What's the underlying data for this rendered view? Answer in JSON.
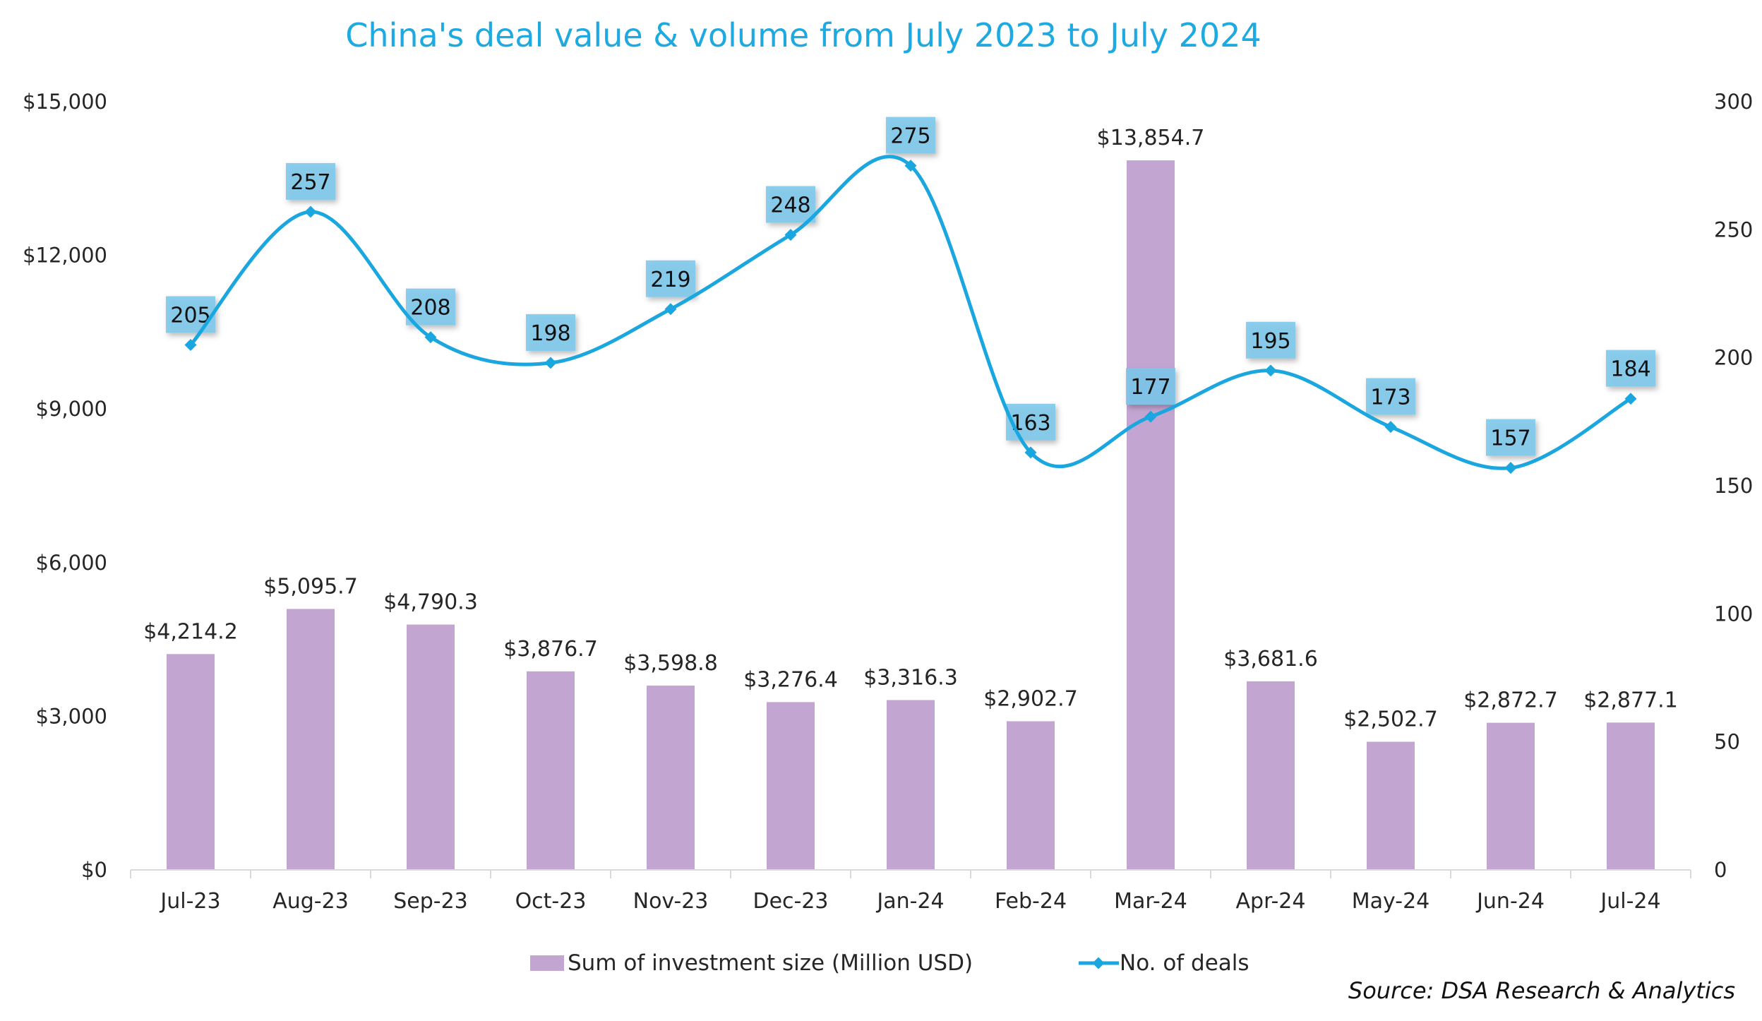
{
  "chart_data": {
    "type": "bar+line",
    "title": "China's deal value & volume from July 2023 to July 2024",
    "categories": [
      "Jul-23",
      "Aug-23",
      "Sep-23",
      "Oct-23",
      "Nov-23",
      "Dec-23",
      "Jan-24",
      "Feb-24",
      "Mar-24",
      "Apr-24",
      "May-24",
      "Jun-24",
      "Jul-24"
    ],
    "series": [
      {
        "name": "Sum of investment size (Million USD)",
        "type": "bar",
        "axis": "left",
        "color": "#c3a5d2",
        "values": [
          4214.2,
          5095.7,
          4790.3,
          3876.7,
          3598.8,
          3276.4,
          3316.3,
          2902.7,
          13854.7,
          3681.6,
          2502.7,
          2872.7,
          2877.1
        ],
        "labels": [
          "$4,214.2",
          "$5,095.7",
          "$4,790.3",
          "$3,876.7",
          "$3,598.8",
          "$3,276.4",
          "$3,316.3",
          "$2,902.7",
          "$13,854.7",
          "$3,681.6",
          "$2,502.7",
          "$2,872.7",
          "$2,877.1"
        ]
      },
      {
        "name": "No. of deals",
        "type": "line",
        "axis": "right",
        "smooth": true,
        "color": "#1aa6df",
        "label_box_color": "#7cc7ea",
        "values": [
          205,
          257,
          208,
          198,
          219,
          248,
          275,
          163,
          177,
          195,
          173,
          157,
          184
        ],
        "labels": [
          "205",
          "257",
          "208",
          "198",
          "219",
          "248",
          "275",
          "163",
          "177",
          "195",
          "173",
          "157",
          "184"
        ]
      }
    ],
    "y_left": {
      "ylim": [
        0,
        15000
      ],
      "ticks": [
        "$0",
        "$3,000",
        "$6,000",
        "$9,000",
        "$12,000",
        "$15,000"
      ],
      "tick_values": [
        0,
        3000,
        6000,
        9000,
        12000,
        15000
      ]
    },
    "y_right": {
      "ylim": [
        0,
        300
      ],
      "ticks": [
        "0",
        "50",
        "100",
        "150",
        "200",
        "250",
        "300"
      ],
      "tick_values": [
        0,
        50,
        100,
        150,
        200,
        250,
        300
      ]
    },
    "xlabel": "",
    "ylabel": "",
    "grid": false,
    "legend": {
      "position": "bottom",
      "entries": [
        "Sum of investment size (Million USD)",
        "No. of deals"
      ]
    },
    "source": "Source: DSA Research & Analytics"
  }
}
